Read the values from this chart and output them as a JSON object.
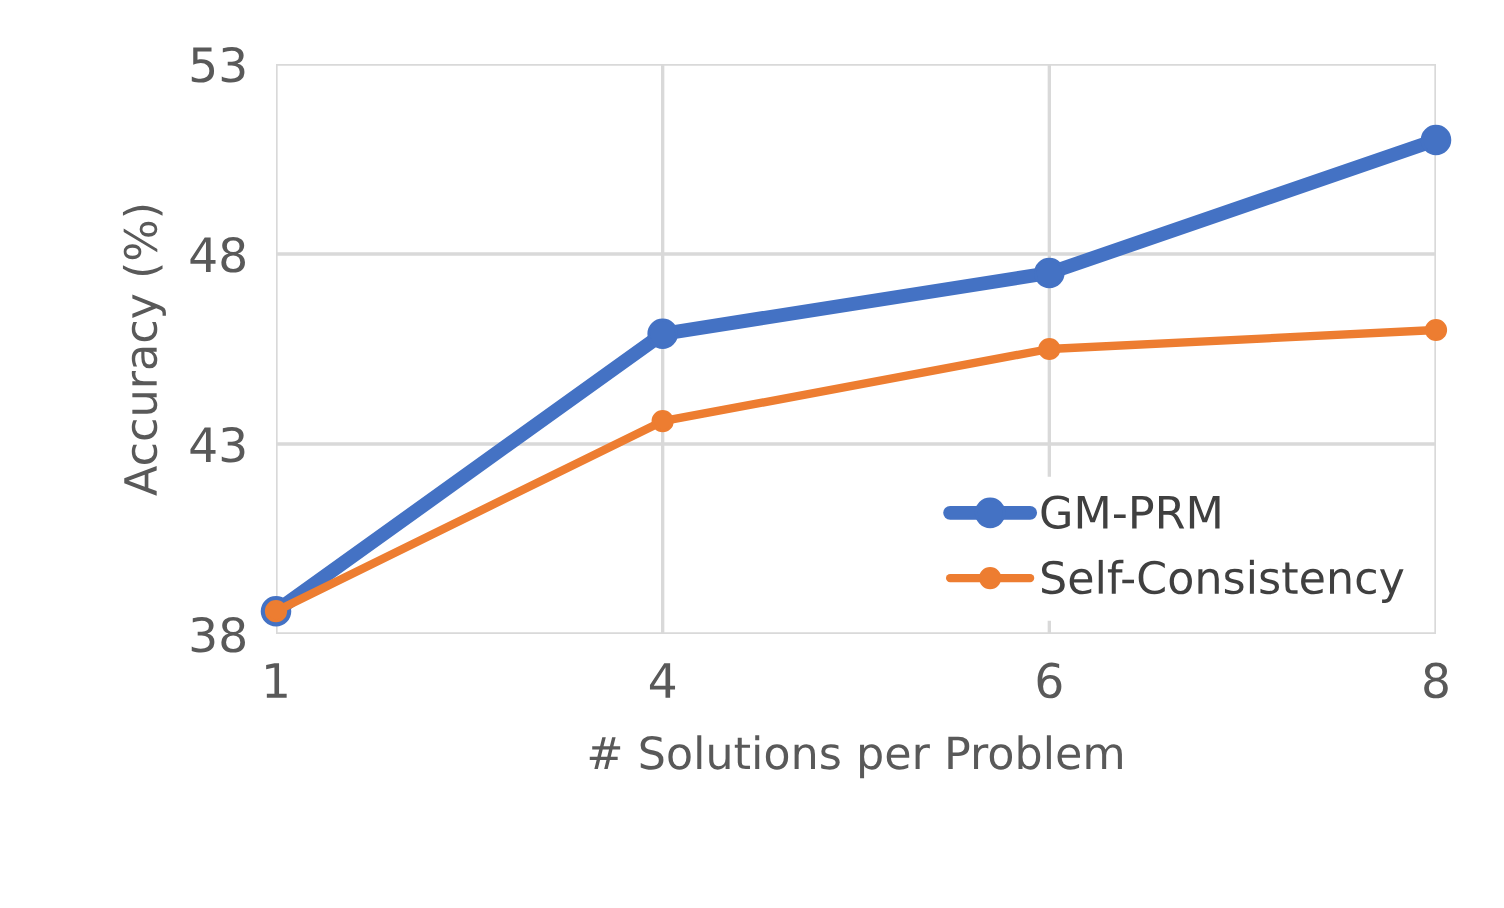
{
  "chart_data": {
    "type": "line",
    "xlabel": "# Solutions per Problem",
    "ylabel": "Accuracy (%)",
    "categories": [
      "1",
      "4",
      "6",
      "8"
    ],
    "series": [
      {
        "name": "GM-PRM",
        "color": "#4472c4",
        "values": [
          38.6,
          45.9,
          47.5,
          51.0
        ]
      },
      {
        "name": "Self-Consistency",
        "color": "#ed7d31",
        "values": [
          38.6,
          43.6,
          45.5,
          46.0
        ]
      }
    ],
    "ylim": [
      38,
      53
    ],
    "yticks": [
      38,
      43,
      48,
      53
    ],
    "grid": true,
    "legend": "bottom right",
    "marker": "circle",
    "line_style": "solid"
  }
}
